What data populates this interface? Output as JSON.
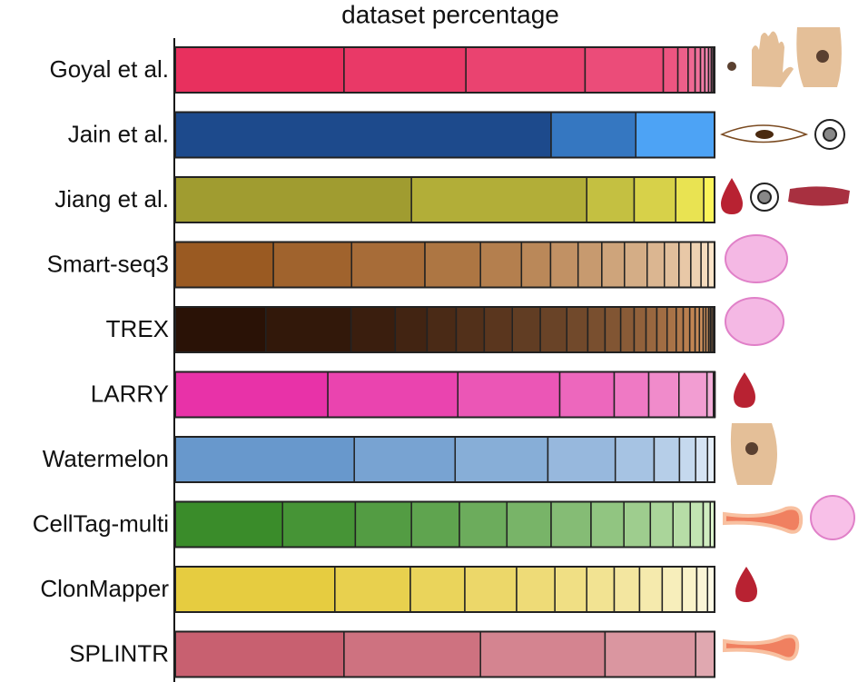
{
  "chart_data": {
    "type": "stacked_barh",
    "title": "dataset percentage",
    "xlim": [
      0,
      100
    ],
    "bars": [
      {
        "name": "Goyal et al.",
        "colors": [
          "#e8305e",
          "#f5a0c8"
        ],
        "values": [
          31.3,
          22.6,
          22.1,
          14.5,
          2.7,
          1.9,
          1.3,
          1.0,
          0.8,
          0.7,
          0.5,
          0.3,
          0.3
        ]
      },
      {
        "name": "Jain et al.",
        "colors": [
          "#1d4a8c",
          "#4da3f5"
        ],
        "values": [
          69.7,
          15.7,
          14.6
        ]
      },
      {
        "name": "Jiang et al.",
        "colors": [
          "#a09c30",
          "#fbf55a"
        ],
        "values": [
          43.8,
          32.5,
          8.8,
          7.7,
          5.2,
          2.0
        ]
      },
      {
        "name": "Smart-seq3",
        "colors": [
          "#9a5a22",
          "#fbe4c8"
        ],
        "values": [
          18.2,
          14.5,
          13.6,
          10.3,
          7.6,
          5.4,
          5.1,
          4.4,
          4.2,
          4.2,
          3.2,
          2.7,
          2.2,
          1.9,
          1.3,
          1.2
        ]
      },
      {
        "name": "TREX",
        "colors": [
          "#2a1206",
          "#f8b070"
        ],
        "values": [
          16.8,
          15.8,
          8.2,
          5.9,
          5.4,
          5.2,
          5.2,
          5.2,
          4.9,
          3.9,
          3.2,
          2.9,
          2.5,
          2.2,
          2.0,
          1.9,
          1.7,
          1.3,
          1.2,
          1.0,
          0.8,
          0.7,
          0.5,
          0.5,
          0.3,
          0.3,
          0.3
        ]
      },
      {
        "name": "LARRY",
        "colors": [
          "#e832a8",
          "#f5c0e0"
        ],
        "values": [
          28.3,
          24.1,
          18.9,
          10.1,
          6.4,
          5.6,
          5.2,
          1.2,
          0.3
        ]
      },
      {
        "name": "Watermelon",
        "colors": [
          "#6898cc",
          "#e4eef9"
        ],
        "values": [
          33.2,
          18.7,
          17.2,
          12.5,
          7.2,
          4.7,
          3.0,
          2.2,
          1.3
        ]
      },
      {
        "name": "CellTag-multi",
        "colors": [
          "#3a8c2a",
          "#dcf5cc"
        ],
        "values": [
          19.9,
          13.5,
          10.4,
          8.9,
          8.8,
          8.2,
          7.4,
          6.1,
          4.9,
          4.2,
          3.2,
          2.4,
          1.3,
          0.8
        ]
      },
      {
        "name": "ClonMapper",
        "colors": [
          "#e6cc40",
          "#fdf9e4"
        ],
        "values": [
          29.6,
          14.0,
          10.1,
          9.6,
          7.1,
          5.9,
          5.1,
          4.7,
          4.2,
          3.7,
          2.7,
          2.0,
          1.3
        ]
      },
      {
        "name": "SPLINTR",
        "colors": [
          "#c86070",
          "#e0a8b0"
        ],
        "values": [
          31.3,
          25.3,
          23.1,
          16.8,
          3.5
        ]
      }
    ]
  }
}
